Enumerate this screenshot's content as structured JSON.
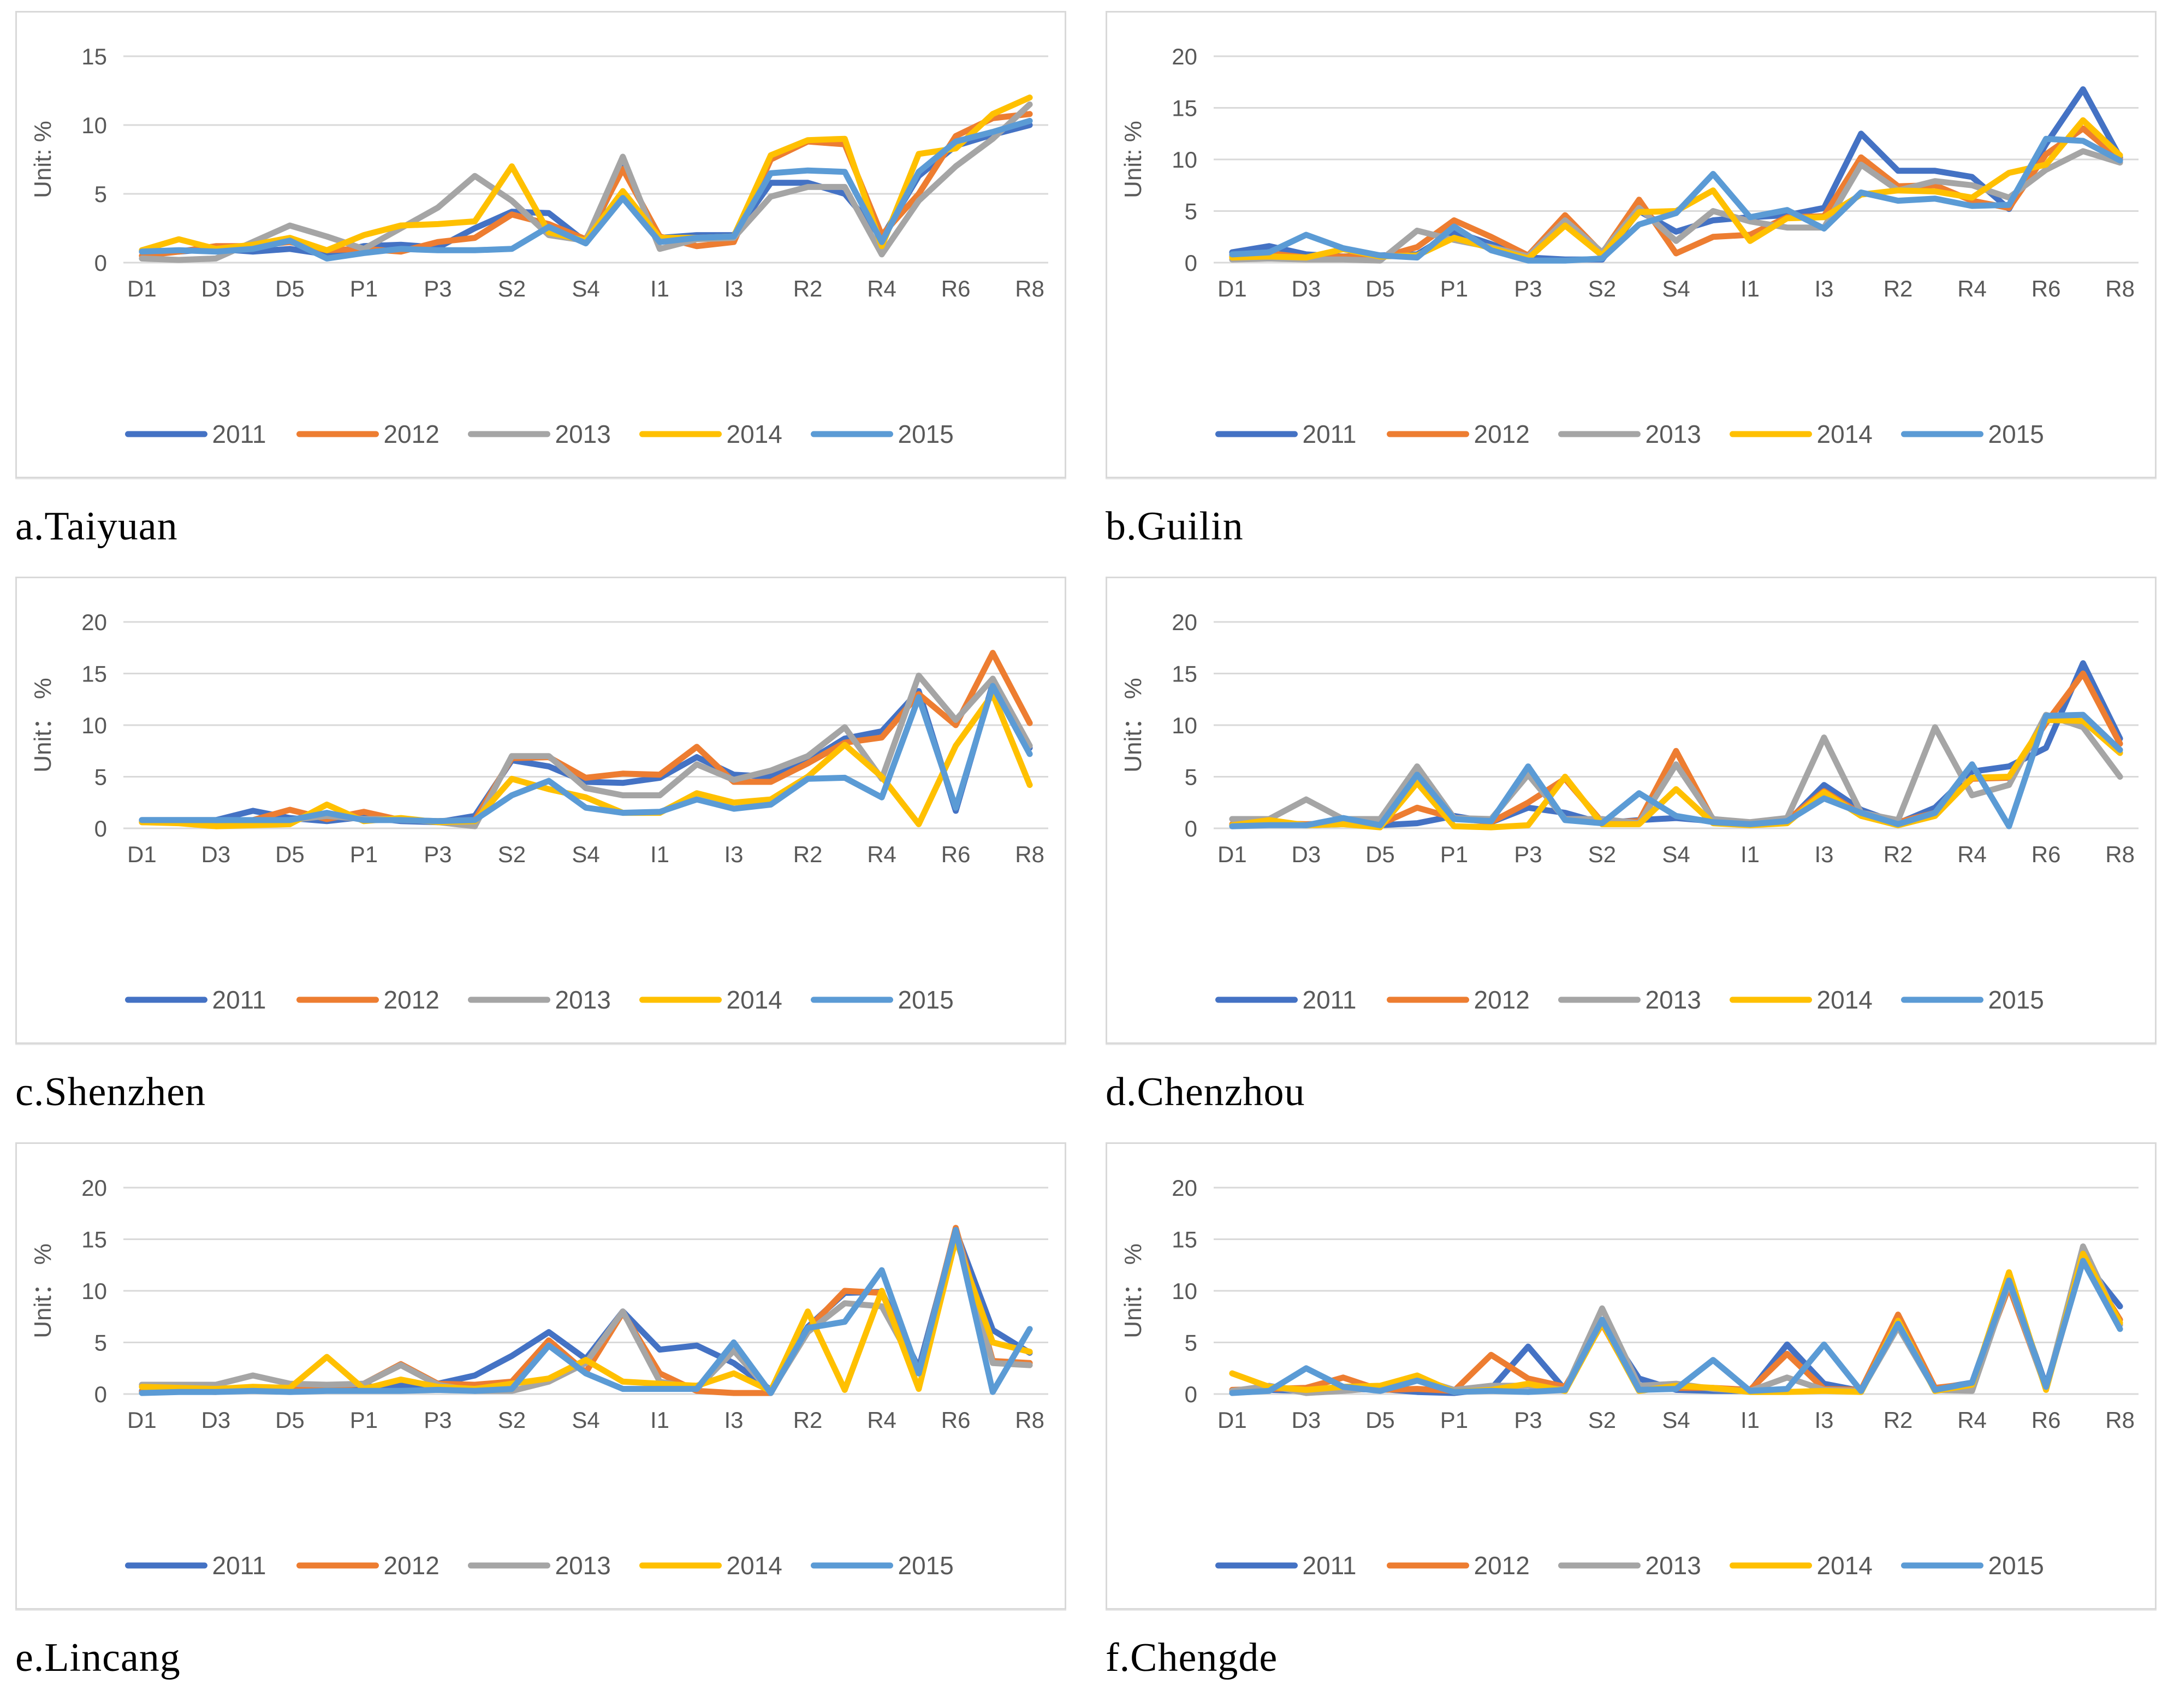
{
  "page": {
    "background": "#ffffff"
  },
  "axis": {
    "text_color": "#595959",
    "grid_color": "#D9D9D9"
  },
  "legend_years": [
    "2011",
    "2012",
    "2013",
    "2014",
    "2015"
  ],
  "series_colors": {
    "2011": "#4472C4",
    "2012": "#ED7D31",
    "2013": "#A5A5A5",
    "2014": "#FFC000",
    "2015": "#5B9BD5"
  },
  "x_tick_labels": [
    "D1",
    "D3",
    "D5",
    "P1",
    "P3",
    "S2",
    "S4",
    "I1",
    "I3",
    "R2",
    "R4",
    "R6",
    "R8"
  ],
  "chart_data": [
    {
      "type": "line",
      "caption": "a.Taiyuan",
      "ylabel": "Unit: %",
      "ylim": [
        0,
        15
      ],
      "yticks": [
        0,
        5,
        10,
        15
      ],
      "n_categories": 25,
      "x_tick_labels": [
        "D1",
        "D3",
        "D5",
        "P1",
        "P3",
        "S2",
        "S4",
        "I1",
        "I3",
        "R2",
        "R4",
        "R6",
        "R8"
      ],
      "grid": "horizontal",
      "legend_position": "bottom",
      "series": [
        {
          "name": "2011",
          "values": [
            0.8,
            0.8,
            1.0,
            0.8,
            1.0,
            0.6,
            1.2,
            1.3,
            1.1,
            2.5,
            3.7,
            3.6,
            1.5,
            6.9,
            1.8,
            2.0,
            2.0,
            5.8,
            5.8,
            5.0,
            1.8,
            6.3,
            8.5,
            9.3,
            10.0
          ]
        },
        {
          "name": "2012",
          "values": [
            0.5,
            0.8,
            1.2,
            1.2,
            1.5,
            0.9,
            1.0,
            0.8,
            1.5,
            1.8,
            3.5,
            2.8,
            1.7,
            6.8,
            1.9,
            1.2,
            1.5,
            7.5,
            8.8,
            8.6,
            2.0,
            5.0,
            9.2,
            10.5,
            10.8
          ]
        },
        {
          "name": "2013",
          "values": [
            0.3,
            0.2,
            0.3,
            1.5,
            2.7,
            1.9,
            1.0,
            2.5,
            4.0,
            6.3,
            4.5,
            2.0,
            1.6,
            7.7,
            1.0,
            1.7,
            1.8,
            4.8,
            5.5,
            5.5,
            0.6,
            4.5,
            7.0,
            9.0,
            11.5
          ]
        },
        {
          "name": "2014",
          "values": [
            0.9,
            1.7,
            1.0,
            1.3,
            1.8,
            0.9,
            2.0,
            2.7,
            2.8,
            3.0,
            7.0,
            2.2,
            1.6,
            5.2,
            1.8,
            1.8,
            1.9,
            7.8,
            8.9,
            9.0,
            1.2,
            7.9,
            8.3,
            10.8,
            12.0
          ]
        },
        {
          "name": "2015",
          "values": [
            0.8,
            0.9,
            0.8,
            1.0,
            1.6,
            0.3,
            0.7,
            1.0,
            0.9,
            0.9,
            1.0,
            2.6,
            1.4,
            4.7,
            1.5,
            1.8,
            1.9,
            6.5,
            6.7,
            6.6,
            1.5,
            6.6,
            8.8,
            9.5,
            10.3
          ]
        }
      ]
    },
    {
      "type": "line",
      "caption": "b.Guilin",
      "ylabel": "Unit: %",
      "ylim": [
        0,
        20
      ],
      "yticks": [
        0,
        5,
        10,
        15,
        20
      ],
      "n_categories": 25,
      "x_tick_labels": [
        "D1",
        "D3",
        "D5",
        "P1",
        "P3",
        "S2",
        "S4",
        "I1",
        "I3",
        "R2",
        "R4",
        "R6",
        "R8"
      ],
      "grid": "horizontal",
      "legend_position": "bottom",
      "series": [
        {
          "name": "2011",
          "values": [
            1.0,
            1.6,
            0.8,
            0.6,
            0.7,
            0.8,
            3.0,
            1.8,
            0.5,
            0.3,
            0.3,
            5.0,
            3.0,
            4.1,
            4.4,
            4.6,
            5.3,
            12.5,
            8.9,
            8.9,
            8.3,
            5.2,
            11.5,
            16.8,
            10.2
          ]
        },
        {
          "name": "2012",
          "values": [
            0.6,
            0.9,
            0.5,
            0.6,
            0.5,
            1.5,
            4.1,
            2.5,
            0.7,
            4.6,
            0.9,
            6.1,
            0.9,
            2.5,
            2.7,
            4.4,
            4.5,
            10.2,
            7.4,
            7.5,
            6.0,
            5.3,
            10.5,
            13.0,
            10.0
          ]
        },
        {
          "name": "2013",
          "values": [
            0.3,
            0.4,
            0.3,
            0.3,
            0.2,
            3.1,
            2.2,
            1.5,
            0.6,
            4.1,
            1.0,
            5.3,
            2.1,
            5.0,
            4.0,
            3.4,
            3.4,
            9.5,
            7.0,
            7.9,
            7.5,
            6.3,
            9.0,
            10.8,
            9.7
          ]
        },
        {
          "name": "2014",
          "values": [
            0.5,
            0.6,
            0.5,
            1.3,
            0.6,
            0.7,
            2.4,
            1.4,
            0.4,
            3.6,
            0.7,
            4.9,
            5.0,
            7.0,
            2.1,
            4.3,
            4.4,
            6.6,
            7.0,
            6.9,
            6.3,
            8.7,
            9.5,
            13.8,
            10.4
          ]
        },
        {
          "name": "2015",
          "values": [
            0.8,
            1.0,
            2.7,
            1.4,
            0.7,
            0.5,
            3.5,
            1.2,
            0.2,
            0.2,
            0.4,
            3.7,
            4.8,
            8.6,
            4.4,
            5.1,
            3.3,
            6.8,
            6.0,
            6.2,
            5.5,
            5.6,
            12.0,
            11.8,
            9.9
          ]
        }
      ]
    },
    {
      "type": "line",
      "caption": "c.Shenzhen",
      "ylabel": "Unit： %",
      "ylim": [
        0,
        20
      ],
      "yticks": [
        0,
        5,
        10,
        15,
        20
      ],
      "n_categories": 25,
      "x_tick_labels": [
        "D1",
        "D3",
        "D5",
        "P1",
        "P3",
        "S2",
        "S4",
        "I1",
        "I3",
        "R2",
        "R4",
        "R6",
        "R8"
      ],
      "grid": "horizontal",
      "legend_position": "bottom",
      "series": [
        {
          "name": "2011",
          "values": [
            0.8,
            0.8,
            0.8,
            1.7,
            1.0,
            0.7,
            1.1,
            0.7,
            0.6,
            1.2,
            6.6,
            6.0,
            4.5,
            4.4,
            4.9,
            6.9,
            5.2,
            5.0,
            6.5,
            8.7,
            9.4,
            13.3,
            1.7,
            14.0,
            7.8
          ]
        },
        {
          "name": "2012",
          "values": [
            0.6,
            0.6,
            0.5,
            0.8,
            1.8,
            0.9,
            1.6,
            0.8,
            0.7,
            0.8,
            6.8,
            6.9,
            4.9,
            5.3,
            5.2,
            7.9,
            4.5,
            4.5,
            6.3,
            8.3,
            8.8,
            13.0,
            10.0,
            17.0,
            10.2
          ]
        },
        {
          "name": "2013",
          "values": [
            0.7,
            0.6,
            0.6,
            0.7,
            0.8,
            1.2,
            0.9,
            0.9,
            0.6,
            0.2,
            7.0,
            7.0,
            3.9,
            3.2,
            3.2,
            6.2,
            4.7,
            5.6,
            7.0,
            9.8,
            4.8,
            14.8,
            10.5,
            14.5,
            8.0
          ]
        },
        {
          "name": "2014",
          "values": [
            0.6,
            0.5,
            0.2,
            0.3,
            0.4,
            2.3,
            0.7,
            1.0,
            0.6,
            0.7,
            4.8,
            3.8,
            3.0,
            1.5,
            1.5,
            3.4,
            2.5,
            2.8,
            5.0,
            8.1,
            5.0,
            0.4,
            8.0,
            13.0,
            4.2
          ]
        },
        {
          "name": "2015",
          "values": [
            0.8,
            0.8,
            0.8,
            0.8,
            0.8,
            1.5,
            0.8,
            0.8,
            0.7,
            0.8,
            3.2,
            4.6,
            2.0,
            1.5,
            1.6,
            2.8,
            1.9,
            2.3,
            4.8,
            4.9,
            3.0,
            12.7,
            2.0,
            13.8,
            7.2
          ]
        }
      ]
    },
    {
      "type": "line",
      "caption": "d.Chenzhou",
      "ylabel": "Unit： %",
      "ylim": [
        0,
        20
      ],
      "yticks": [
        0,
        5,
        10,
        15,
        20
      ],
      "n_categories": 25,
      "x_tick_labels": [
        "D1",
        "D3",
        "D5",
        "P1",
        "P3",
        "S2",
        "S4",
        "I1",
        "I3",
        "R2",
        "R4",
        "R6",
        "R8"
      ],
      "grid": "horizontal",
      "legend_position": "bottom",
      "series": [
        {
          "name": "2011",
          "values": [
            0.3,
            0.4,
            0.3,
            0.4,
            0.3,
            0.5,
            1.2,
            0.6,
            2.0,
            1.5,
            0.5,
            0.8,
            1.0,
            0.7,
            0.4,
            0.6,
            4.2,
            1.8,
            0.5,
            2.0,
            5.5,
            6.0,
            7.8,
            16.0,
            8.7
          ]
        },
        {
          "name": "2012",
          "values": [
            0.4,
            0.5,
            0.4,
            0.5,
            0.4,
            2.0,
            1.0,
            0.6,
            2.5,
            4.8,
            0.6,
            0.7,
            7.5,
            0.8,
            0.5,
            0.8,
            3.6,
            1.4,
            0.6,
            1.5,
            4.8,
            4.9,
            10.2,
            15.0,
            8.2
          ]
        },
        {
          "name": "2013",
          "values": [
            0.9,
            0.9,
            2.8,
            0.9,
            0.9,
            6.0,
            1.0,
            0.9,
            5.2,
            0.9,
            0.9,
            0.5,
            6.2,
            0.9,
            0.6,
            1.0,
            8.8,
            1.5,
            0.8,
            9.8,
            3.2,
            4.2,
            11.0,
            9.8,
            5.0
          ]
        },
        {
          "name": "2014",
          "values": [
            0.3,
            0.8,
            0.3,
            0.4,
            0.1,
            4.4,
            0.2,
            0.1,
            0.3,
            5.0,
            0.4,
            0.4,
            3.8,
            0.5,
            0.3,
            0.5,
            3.5,
            1.2,
            0.3,
            1.2,
            4.9,
            5.0,
            10.5,
            10.4,
            7.3
          ]
        },
        {
          "name": "2015",
          "values": [
            0.2,
            0.3,
            0.3,
            1.0,
            0.3,
            5.2,
            0.9,
            0.7,
            6.0,
            0.8,
            0.5,
            3.4,
            1.2,
            0.6,
            0.4,
            0.7,
            2.9,
            1.5,
            0.4,
            1.5,
            6.2,
            0.2,
            10.9,
            11.0,
            7.6
          ]
        }
      ]
    },
    {
      "type": "line",
      "caption": "e.Lincang",
      "ylabel": "Unit： %",
      "ylim": [
        0,
        20
      ],
      "yticks": [
        0,
        5,
        10,
        15,
        20
      ],
      "n_categories": 25,
      "x_tick_labels": [
        "D1",
        "D3",
        "D5",
        "P1",
        "P3",
        "S2",
        "S4",
        "I1",
        "I3",
        "R2",
        "R4",
        "R6",
        "R8"
      ],
      "grid": "horizontal",
      "legend_position": "bottom",
      "series": [
        {
          "name": "2011",
          "values": [
            0.3,
            0.4,
            0.5,
            0.6,
            0.5,
            0.5,
            0.7,
            0.8,
            1.0,
            1.8,
            3.7,
            6.0,
            3.4,
            8.0,
            4.3,
            4.7,
            3.0,
            0.4,
            6.5,
            9.8,
            9.9,
            2.5,
            15.8,
            6.2,
            4.0
          ]
        },
        {
          "name": "2012",
          "values": [
            0.2,
            0.3,
            0.2,
            0.5,
            0.6,
            0.7,
            1.0,
            2.9,
            1.0,
            0.9,
            1.2,
            5.2,
            2.1,
            7.9,
            2.0,
            0.3,
            0.1,
            0.1,
            6.3,
            10.0,
            9.8,
            2.0,
            16.1,
            3.2,
            3.0
          ]
        },
        {
          "name": "2013",
          "values": [
            0.9,
            0.9,
            0.9,
            1.8,
            1.0,
            0.9,
            1.0,
            2.8,
            0.9,
            0.3,
            0.3,
            1.2,
            3.0,
            8.0,
            1.2,
            0.5,
            4.2,
            0.2,
            6.0,
            8.8,
            8.5,
            2.0,
            15.8,
            3.0,
            2.8
          ]
        },
        {
          "name": "2014",
          "values": [
            0.7,
            0.6,
            0.5,
            0.7,
            0.6,
            3.6,
            0.5,
            1.4,
            0.7,
            0.5,
            1.0,
            1.5,
            3.3,
            1.2,
            1.0,
            0.8,
            2.0,
            0.3,
            8.0,
            0.4,
            10.0,
            0.5,
            15.0,
            5.0,
            4.1
          ]
        },
        {
          "name": "2015",
          "values": [
            0.1,
            0.2,
            0.2,
            0.3,
            0.2,
            0.3,
            0.3,
            0.3,
            0.4,
            0.3,
            0.5,
            4.7,
            2.0,
            0.5,
            0.5,
            0.5,
            5.0,
            0.1,
            6.4,
            7.0,
            12.0,
            2.0,
            15.9,
            0.2,
            6.3
          ]
        }
      ]
    },
    {
      "type": "line",
      "caption": "f.Chengde",
      "ylabel": "Unit： %",
      "ylim": [
        0,
        20
      ],
      "yticks": [
        0,
        5,
        10,
        15,
        20
      ],
      "n_categories": 25,
      "x_tick_labels": [
        "D1",
        "D3",
        "D5",
        "P1",
        "P3",
        "S2",
        "S4",
        "I1",
        "I3",
        "R2",
        "R4",
        "R6",
        "R8"
      ],
      "grid": "horizontal",
      "legend_position": "bottom",
      "series": [
        {
          "name": "2011",
          "values": [
            0.3,
            0.4,
            0.3,
            0.4,
            0.5,
            0.2,
            0.1,
            0.5,
            4.6,
            0.4,
            7.0,
            1.5,
            0.4,
            0.3,
            0.3,
            4.8,
            1.0,
            0.3,
            6.8,
            0.5,
            1.1,
            11.2,
            0.8,
            13.0,
            8.5
          ]
        },
        {
          "name": "2012",
          "values": [
            0.4,
            0.5,
            0.6,
            1.6,
            0.4,
            0.5,
            0.3,
            3.8,
            1.5,
            0.7,
            6.8,
            0.4,
            0.6,
            0.6,
            0.4,
            3.9,
            0.5,
            0.4,
            7.7,
            0.6,
            1.0,
            10.4,
            0.6,
            13.0,
            7.2
          ]
        },
        {
          "name": "2013",
          "values": [
            0.3,
            0.8,
            0.1,
            0.3,
            0.6,
            1.5,
            0.4,
            0.8,
            0.8,
            0.4,
            8.3,
            0.8,
            1.0,
            0.5,
            0.3,
            1.6,
            0.4,
            0.3,
            6.5,
            0.4,
            0.3,
            10.8,
            0.5,
            14.3,
            6.7
          ]
        },
        {
          "name": "2014",
          "values": [
            2.0,
            0.7,
            0.4,
            0.7,
            0.8,
            1.8,
            0.2,
            0.4,
            1.0,
            0.3,
            6.9,
            0.3,
            0.8,
            0.6,
            0.2,
            0.2,
            0.3,
            0.2,
            7.1,
            0.3,
            0.9,
            11.8,
            0.4,
            13.6,
            6.9
          ]
        },
        {
          "name": "2015",
          "values": [
            0.1,
            0.3,
            2.5,
            0.7,
            0.3,
            1.3,
            0.2,
            0.3,
            0.2,
            0.4,
            7.2,
            0.4,
            0.5,
            3.3,
            0.3,
            0.5,
            4.8,
            0.3,
            6.8,
            0.4,
            1.1,
            11.0,
            0.7,
            12.9,
            6.3
          ]
        }
      ]
    }
  ]
}
